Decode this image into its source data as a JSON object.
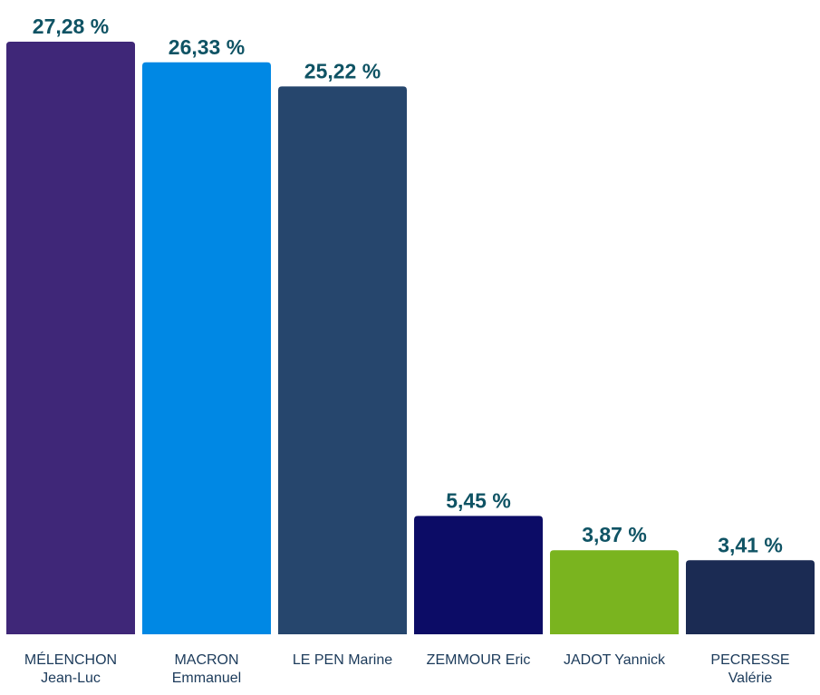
{
  "chart_data": {
    "type": "bar",
    "categories": [
      [
        "MÉLENCHON",
        "Jean-Luc"
      ],
      [
        "MACRON",
        "Emmanuel"
      ],
      [
        "LE PEN Marine"
      ],
      [
        "ZEMMOUR Eric"
      ],
      [
        "JADOT Yannick"
      ],
      [
        "PECRESSE",
        "Valérie"
      ]
    ],
    "values": [
      27.28,
      26.33,
      25.22,
      5.45,
      3.87,
      3.41
    ],
    "data_labels": [
      "27,28 %",
      "26,33 %",
      "25,22 %",
      "5,45 %",
      "3,87 %",
      "3,41 %"
    ],
    "bar_colors": [
      "#3f2778",
      "#0088e4",
      "#26466d",
      "#0c0c66",
      "#7ab41f",
      "#1b2b53"
    ],
    "ylim": [
      0,
      27.28
    ],
    "grid": false,
    "legend": "none",
    "title": "",
    "xlabel": "",
    "ylabel": ""
  },
  "style": {
    "value_label_color": "#0f5364",
    "category_label_color": "#1b3a5a"
  }
}
